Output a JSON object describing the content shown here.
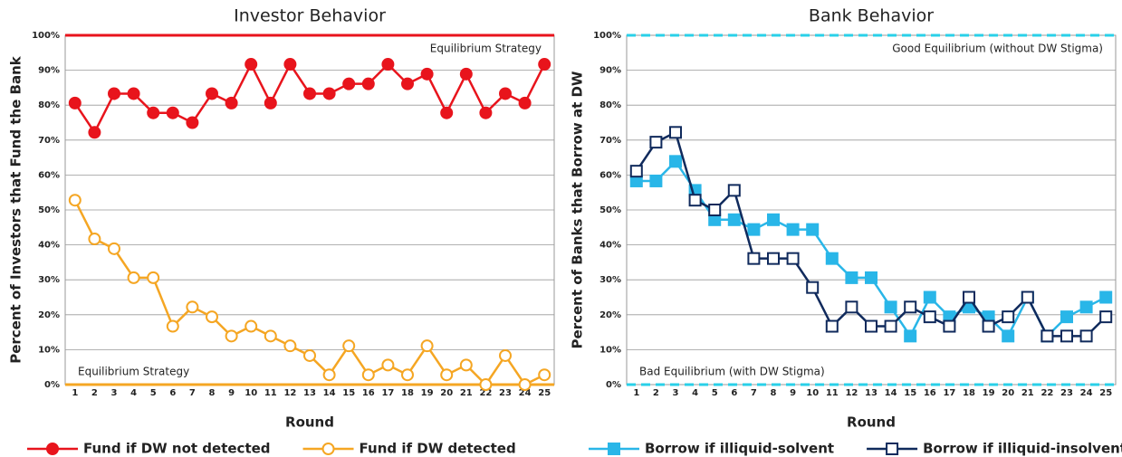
{
  "chart_data": [
    {
      "type": "line",
      "title": "Investor Behavior",
      "ylabel": "Percent of Investors that Fund the Bank",
      "xlabel": "Round",
      "categories": [
        "1",
        "2",
        "3",
        "4",
        "5",
        "6",
        "7",
        "8",
        "9",
        "10",
        "11",
        "12",
        "13",
        "14",
        "15",
        "16",
        "17",
        "18",
        "19",
        "20",
        "21",
        "22",
        "23",
        "24",
        "25"
      ],
      "series": [
        {
          "name": "Fund if DW not detected",
          "color": "#e8141c",
          "marker": "circle",
          "filled": true,
          "values": [
            80.6,
            72.2,
            83.3,
            83.3,
            77.8,
            77.8,
            75.0,
            83.3,
            80.6,
            91.7,
            80.6,
            91.7,
            83.3,
            83.3,
            86.1,
            86.1,
            91.7,
            86.1,
            88.9,
            77.8,
            88.9,
            77.8,
            83.3,
            80.6,
            91.7
          ]
        },
        {
          "name": "Fund if DW detected",
          "color": "#f5a623",
          "marker": "circle",
          "filled": false,
          "values": [
            52.8,
            41.7,
            38.9,
            30.6,
            30.6,
            16.7,
            22.2,
            19.4,
            13.9,
            16.7,
            13.9,
            11.1,
            8.3,
            2.8,
            11.1,
            2.8,
            5.6,
            2.8,
            11.1,
            2.8,
            5.6,
            0,
            8.3,
            0,
            2.8
          ]
        }
      ],
      "reference_lines": [
        {
          "value": 100,
          "color": "#e8141c",
          "dashed": false,
          "label": "Equilibrium Strategy"
        },
        {
          "value": 0,
          "color": "#f5a623",
          "dashed": false,
          "label": "Equilibrium Strategy"
        }
      ],
      "ylim": [
        0,
        100
      ],
      "yticks": [
        {
          "value": 0,
          "label": "0%"
        },
        {
          "value": 10,
          "label": "10%"
        },
        {
          "value": 20,
          "label": "20%"
        },
        {
          "value": 30,
          "label": "30%"
        },
        {
          "value": 40,
          "label": "40%"
        },
        {
          "value": 50,
          "label": "50%"
        },
        {
          "value": 60,
          "label": "60%"
        },
        {
          "value": 70,
          "label": "70%"
        },
        {
          "value": 80,
          "label": "80%"
        },
        {
          "value": 90,
          "label": "90%"
        },
        {
          "value": 100,
          "label": "100%"
        }
      ],
      "grid": true
    },
    {
      "type": "line",
      "title": "Bank Behavior",
      "ylabel": "Percent of Banks that Borrow at DW",
      "xlabel": "Round",
      "categories": [
        "1",
        "2",
        "3",
        "4",
        "5",
        "6",
        "7",
        "8",
        "9",
        "10",
        "11",
        "12",
        "13",
        "14",
        "15",
        "16",
        "17",
        "18",
        "19",
        "20",
        "21",
        "22",
        "23",
        "24",
        "25"
      ],
      "series": [
        {
          "name": "Borrow if illiquid-solvent",
          "color": "#29b6e8",
          "marker": "square",
          "filled": true,
          "values": [
            58.3,
            58.3,
            63.9,
            55.6,
            47.2,
            47.2,
            44.4,
            47.2,
            44.4,
            44.4,
            36.1,
            30.6,
            30.6,
            22.2,
            13.9,
            25.0,
            19.4,
            22.2,
            19.4,
            13.9,
            25.0,
            13.9,
            19.4,
            22.2,
            25.0
          ]
        },
        {
          "name": "Borrow if illiquid-insolvent",
          "color": "#102a5c",
          "marker": "square",
          "filled": false,
          "values": [
            61.1,
            69.4,
            72.2,
            52.8,
            50.0,
            55.6,
            36.1,
            36.1,
            36.1,
            27.8,
            16.7,
            22.2,
            16.7,
            16.7,
            22.2,
            19.4,
            16.7,
            25.0,
            16.7,
            19.4,
            25.0,
            13.9,
            13.9,
            13.9,
            19.4
          ]
        }
      ],
      "reference_lines": [
        {
          "value": 100,
          "color": "#29d0e8",
          "dashed": true,
          "label": "Good Equilibrium (without DW Stigma)"
        },
        {
          "value": 0,
          "color": "#29d0e8",
          "dashed": true,
          "label": "Bad Equilibrium (with DW Stigma)"
        }
      ],
      "ylim": [
        0,
        100
      ],
      "yticks": [
        {
          "value": 0,
          "label": "0%"
        },
        {
          "value": 10,
          "label": "10%"
        },
        {
          "value": 20,
          "label": "20%"
        },
        {
          "value": 30,
          "label": "30%"
        },
        {
          "value": 40,
          "label": "40%"
        },
        {
          "value": 50,
          "label": "50%"
        },
        {
          "value": 60,
          "label": "60%"
        },
        {
          "value": 70,
          "label": "70%"
        },
        {
          "value": 80,
          "label": "80%"
        },
        {
          "value": 90,
          "label": "90%"
        },
        {
          "value": 100,
          "label": "100%"
        }
      ],
      "grid": true
    }
  ]
}
